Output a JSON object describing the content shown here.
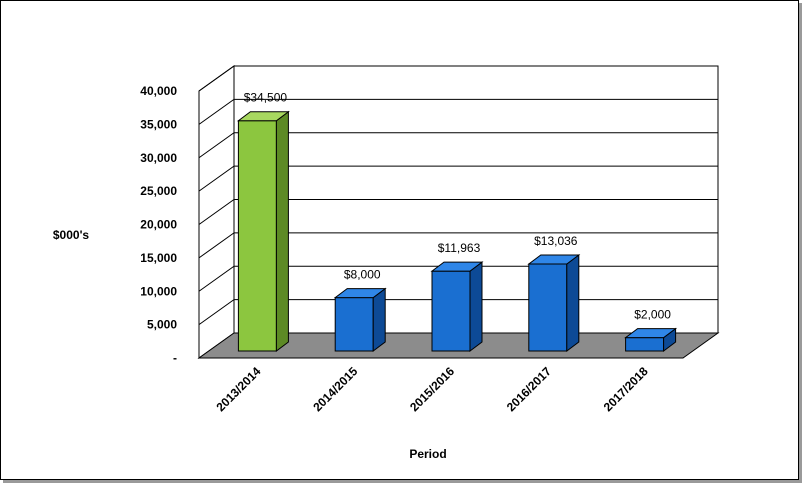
{
  "chart_data": {
    "type": "bar",
    "categories": [
      "2013/2014",
      "2014/2015",
      "2015/2016",
      "2016/2017",
      "2017/2018"
    ],
    "values": [
      34500,
      8000,
      11963,
      13036,
      2000
    ],
    "data_labels": [
      "$34,500",
      "$8,000",
      "$11,963",
      "$13,036",
      "$2,000"
    ],
    "y_tick_labels": [
      "-",
      "5,000",
      "10,000",
      "15,000",
      "20,000",
      "25,000",
      "30,000",
      "35,000",
      "40,000"
    ],
    "xlabel": "Period",
    "ylabel": "$000's",
    "ylim": [
      0,
      40000
    ],
    "grid": true,
    "style": "3d-column",
    "colors": {
      "highlight": "#8cc63f",
      "highlight_side": "#5d8a25",
      "highlight_top": "#a8d860",
      "bar": "#1a6fd1",
      "bar_side": "#0d4a96",
      "bar_top": "#2f86e8",
      "floor": "#8c8c8c"
    },
    "highlight_index": 0
  }
}
